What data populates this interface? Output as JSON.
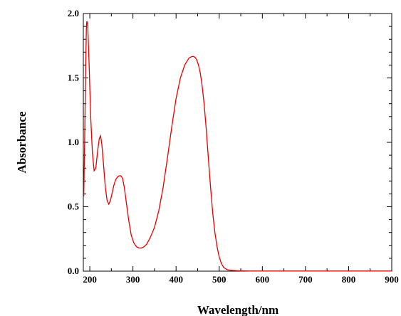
{
  "chart_data": {
    "type": "line",
    "xlabel": "Wavelength/nm",
    "ylabel": "Absorbance",
    "xlim": [
      185,
      900
    ],
    "ylim": [
      0,
      2.0
    ],
    "x_ticks": [
      "200",
      "300",
      "400",
      "500",
      "600",
      "700",
      "800",
      "900"
    ],
    "y_ticks": [
      "0.0",
      "0.5",
      "1.0",
      "1.5",
      "2.0"
    ],
    "grid": false,
    "series": [
      {
        "color": "#e60000",
        "x": [
          186,
          188,
          190,
          192,
          193,
          195,
          198,
          202,
          206,
          210,
          214,
          218,
          222,
          225,
          228,
          232,
          236,
          240,
          244,
          248,
          252,
          256,
          260,
          264,
          268,
          272,
          276,
          280,
          284,
          290,
          296,
          302,
          308,
          314,
          320,
          326,
          332,
          340,
          350,
          360,
          370,
          380,
          390,
          400,
          410,
          420,
          430,
          436,
          440,
          444,
          448,
          452,
          456,
          460,
          465,
          470,
          475,
          480,
          485,
          490,
          495,
          500,
          505,
          510,
          515,
          520,
          530,
          540,
          550,
          560,
          570,
          580,
          600,
          650,
          700,
          750,
          800,
          850,
          900
        ],
        "y": [
          0.58,
          1.0,
          1.5,
          1.88,
          1.94,
          1.92,
          1.65,
          1.2,
          0.92,
          0.78,
          0.8,
          0.93,
          1.03,
          1.05,
          0.98,
          0.82,
          0.65,
          0.55,
          0.52,
          0.55,
          0.61,
          0.67,
          0.71,
          0.73,
          0.74,
          0.74,
          0.72,
          0.65,
          0.55,
          0.4,
          0.28,
          0.22,
          0.19,
          0.18,
          0.18,
          0.19,
          0.21,
          0.26,
          0.34,
          0.47,
          0.65,
          0.88,
          1.12,
          1.34,
          1.5,
          1.6,
          1.655,
          1.665,
          1.667,
          1.66,
          1.64,
          1.6,
          1.54,
          1.45,
          1.3,
          1.1,
          0.87,
          0.65,
          0.45,
          0.3,
          0.19,
          0.11,
          0.06,
          0.03,
          0.018,
          0.01,
          0.006,
          0.004,
          0.003,
          0.002,
          0.0015,
          0.001,
          0.001,
          0.001,
          0.001,
          0.001,
          0.001,
          0.001,
          0.001
        ]
      }
    ]
  }
}
